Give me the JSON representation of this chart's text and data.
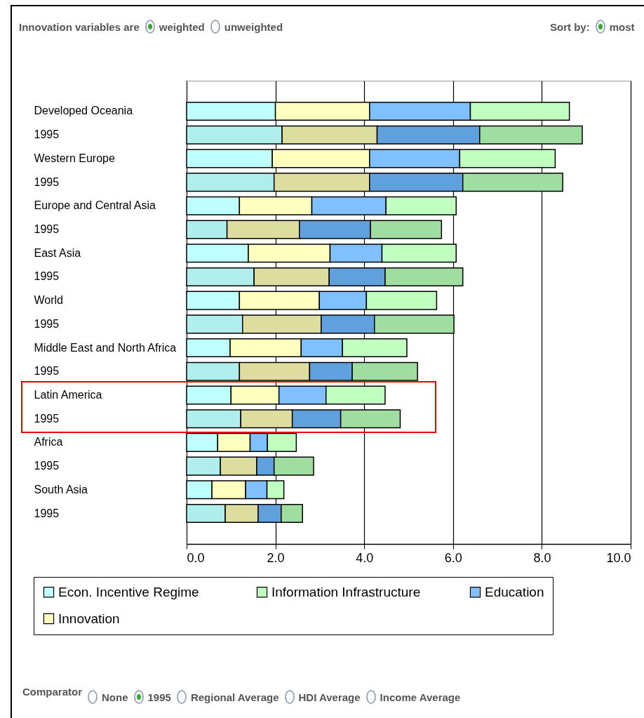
{
  "chart_data": {
    "type": "bar",
    "orientation": "horizontal",
    "stacked": true,
    "categories": [
      "Developed Oceania",
      "1995",
      "Western Europe",
      "1995",
      "Europe and Central Asia",
      "1995",
      "East Asia",
      "1995",
      "World",
      "1995",
      "Middle East and North Africa",
      "1995",
      "Latin America",
      "1995",
      "Africa",
      "1995",
      "South Asia",
      "1995"
    ],
    "series": [
      {
        "name": "Econ. Incentive Regime",
        "color": "#c0ffff",
        "colors": [
          "#c0ffff",
          "#b0eeee",
          "#c0ffff",
          "#b0eeee",
          "#c0ffff",
          "#b0eeee",
          "#c0ffff",
          "#b0eeee",
          "#c0ffff",
          "#b0eeee",
          "#c0ffff",
          "#b0eeee",
          "#c0ffff",
          "#b0eeee",
          "#c0ffff",
          "#b0eeee",
          "#c0ffff",
          "#b0eeee"
        ],
        "values": [
          2.0,
          2.15,
          1.93,
          1.97,
          1.19,
          0.91,
          1.39,
          1.52,
          1.19,
          1.26,
          0.98,
          1.19,
          1.0,
          1.22,
          0.7,
          0.76,
          0.57,
          0.87
        ]
      },
      {
        "name": "Innovation",
        "color": "#ffffc0",
        "colors": [
          "#ffffc0",
          "#dddd9f",
          "#ffffc0",
          "#dddd9f",
          "#ffffc0",
          "#dddd9f",
          "#ffffc0",
          "#dddd9f",
          "#ffffc0",
          "#dddd9f",
          "#ffffc0",
          "#dddd9f",
          "#ffffc0",
          "#dddd9f",
          "#ffffc0",
          "#dddd9f",
          "#ffffc0",
          "#dddd9f"
        ],
        "values": [
          2.12,
          2.14,
          2.19,
          2.15,
          1.63,
          1.63,
          1.84,
          1.69,
          1.8,
          1.77,
          1.6,
          1.58,
          1.08,
          1.16,
          0.73,
          0.82,
          0.76,
          0.74
        ]
      },
      {
        "name": "Education",
        "color": "#80c0ff",
        "colors": [
          "#80c0ff",
          "#60a0dd",
          "#80c0ff",
          "#60a0dd",
          "#80c0ff",
          "#60a0dd",
          "#80c0ff",
          "#60a0dd",
          "#80c0ff",
          "#60a0dd",
          "#80c0ff",
          "#60a0dd",
          "#80c0ff",
          "#60a0dd",
          "#80c0ff",
          "#60a0dd",
          "#80c0ff",
          "#60a0dd"
        ],
        "values": [
          2.27,
          2.31,
          2.03,
          2.1,
          1.67,
          1.6,
          1.17,
          1.26,
          1.06,
          1.2,
          0.93,
          0.96,
          1.06,
          1.09,
          0.39,
          0.39,
          0.48,
          0.52
        ]
      },
      {
        "name": "Information Infrastructure",
        "color": "#c0ffc0",
        "colors": [
          "#c0ffc0",
          "#a0dda0",
          "#c0ffc0",
          "#a0dda0",
          "#c0ffc0",
          "#a0dda0",
          "#c0ffc0",
          "#a0dda0",
          "#c0ffc0",
          "#a0dda0",
          "#c0ffc0",
          "#a0dda0",
          "#c0ffc0",
          "#a0dda0",
          "#c0ffc0",
          "#a0dda0",
          "#c0ffc0",
          "#a0dda0"
        ],
        "values": [
          2.23,
          2.31,
          2.15,
          2.25,
          1.58,
          1.6,
          1.67,
          1.75,
          1.58,
          1.79,
          1.45,
          1.47,
          1.33,
          1.34,
          0.65,
          0.89,
          0.38,
          0.48
        ]
      }
    ],
    "xlim": [
      0,
      10
    ],
    "xticks": [
      {
        "value": 0,
        "label": "0.0"
      },
      {
        "value": 2,
        "label": "2.0"
      },
      {
        "value": 4,
        "label": "4.0"
      },
      {
        "value": 6,
        "label": "6.0"
      },
      {
        "value": 8,
        "label": "8.0"
      },
      {
        "value": 10,
        "label": "10.0"
      }
    ],
    "grid": "x",
    "legend": "bottom",
    "annotations": [
      "Innovation variables are",
      "weighted",
      "unweighted",
      "Sort by:",
      "most",
      "Comparator",
      "None",
      "1995",
      "Regional Average",
      "HDI Average",
      "Income Average"
    ]
  }
}
